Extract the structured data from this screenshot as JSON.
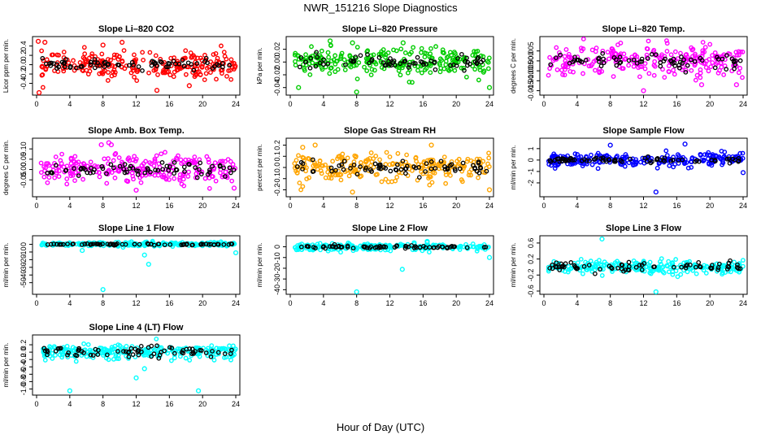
{
  "main_title": "NWR_151216  Slope Diagnostics",
  "xlabel": "Hour of Day (UTC)",
  "colors": {
    "co2": "#ff0000",
    "pressure": "#00cc00",
    "temp": "#ff00ff",
    "box_temp": "#ff00ff",
    "rh": "#ffa500",
    "sample_flow": "#0000ff",
    "line_flow": "#00ffff",
    "hourly": "#000000"
  },
  "chart_data": [
    {
      "type": "scatter",
      "title": "Slope Li–820 CO2",
      "ylabel": "Licor ppm per min.",
      "color": "#ff0000",
      "xlim": [
        0,
        24
      ],
      "ylim": [
        -0.6,
        0.55
      ],
      "xticks": [
        "0",
        "4",
        "8",
        "12",
        "16",
        "20",
        "24"
      ],
      "yticks": [
        {
          "v": -0.4,
          "label": "-0.4"
        },
        {
          "v": -0.2,
          "label": "-0.2"
        },
        {
          "v": 0,
          "label": "0.0"
        },
        {
          "v": 0.2,
          "label": "0.2"
        },
        {
          "v": 0.4,
          "label": "0.4"
        }
      ],
      "spread": 0.14,
      "hourly_spread": 0.05,
      "series": [
        {
          "x": [
            0.2,
            1.0,
            8.0,
            10.3,
            0.3,
            14.5,
            18.4
          ],
          "y": [
            0.5,
            0.48,
            0.42,
            0.48,
            -0.6,
            -0.55,
            -0.45
          ]
        }
      ]
    },
    {
      "type": "scatter",
      "title": "Slope Li–820 Pressure",
      "ylabel": "kPa per min.",
      "color": "#00cc00",
      "xlim": [
        0,
        24
      ],
      "ylim": [
        -0.048,
        0.036
      ],
      "xticks": [
        "0",
        "4",
        "8",
        "12",
        "16",
        "20",
        "24"
      ],
      "yticks": [
        {
          "v": -0.04,
          "label": "-0.04"
        },
        {
          "v": -0.02,
          "label": "-0.02"
        },
        {
          "v": 0,
          "label": "0.00"
        },
        {
          "v": 0.02,
          "label": "0.02"
        }
      ],
      "spread": 0.011,
      "hourly_spread": 0.005,
      "series": [
        {
          "x": [
            4.8,
            7.5,
            13.6,
            8.0,
            24.0,
            1.0
          ],
          "y": [
            0.033,
            0.03,
            0.03,
            -0.047,
            -0.04,
            -0.04
          ]
        }
      ]
    },
    {
      "type": "scatter",
      "title": "Slope Li–820 Temp.",
      "ylabel": "degrees C per min.",
      "color": "#ff00ff",
      "xlim": [
        0,
        24
      ],
      "ylim": [
        -0.016,
        0.011
      ],
      "xticks": [
        "0",
        "4",
        "8",
        "12",
        "16",
        "20",
        "24"
      ],
      "yticks": [
        {
          "v": -0.015,
          "label": "-0.015"
        },
        {
          "v": -0.01,
          "label": "-0.010"
        },
        {
          "v": -0.005,
          "label": "-0.005"
        },
        {
          "v": 0,
          "label": "0.000"
        },
        {
          "v": 0.005,
          "label": "0.005"
        }
      ],
      "spread": 0.004,
      "hourly_spread": 0.002,
      "series": [
        {
          "x": [
            12.0,
            19.0,
            23.2
          ],
          "y": [
            -0.015,
            -0.012,
            -0.012
          ]
        }
      ]
    },
    {
      "type": "scatter",
      "title": "Slope Amb. Box Temp.",
      "ylabel": "degrees C per min.",
      "color": "#ff00ff",
      "xlim": [
        0,
        24
      ],
      "ylim": [
        -0.12,
        0.14
      ],
      "xticks": [
        "0",
        "4",
        "8",
        "12",
        "16",
        "20",
        "24"
      ],
      "yticks": [
        {
          "v": -0.05,
          "label": "-0.05"
        },
        {
          "v": 0,
          "label": "0.00"
        },
        {
          "v": 0.05,
          "label": "0.05"
        },
        {
          "v": 0.1,
          "label": "0.10"
        }
      ],
      "spread": 0.035,
      "hourly_spread": 0.015,
      "series": [
        {
          "x": [
            7.8,
            8.7,
            9.0,
            23.8,
            12.0
          ],
          "y": [
            0.12,
            0.13,
            0.12,
            -0.09,
            -0.1
          ]
        }
      ]
    },
    {
      "type": "scatter",
      "title": "Slope Gas Stream RH",
      "ylabel": "percent per min.",
      "color": "#ffa500",
      "xlim": [
        0,
        24
      ],
      "ylim": [
        -0.24,
        0.24
      ],
      "xticks": [
        "0",
        "4",
        "8",
        "12",
        "16",
        "20",
        "24"
      ],
      "yticks": [
        {
          "v": -0.2,
          "label": "-0.2"
        },
        {
          "v": -0.1,
          "label": "-0.1"
        },
        {
          "v": 0,
          "label": "0.0"
        },
        {
          "v": 0.1,
          "label": "0.1"
        },
        {
          "v": 0.2,
          "label": "0.2"
        }
      ],
      "spread": 0.06,
      "hourly_spread": 0.03,
      "series": [
        {
          "x": [
            7.5,
            17.0,
            24.0,
            1.5,
            3.0
          ],
          "y": [
            -0.22,
            0.2,
            -0.2,
            0.18,
            0.2
          ]
        }
      ]
    },
    {
      "type": "scatter",
      "title": "Slope Sample Flow",
      "ylabel": "ml/min per min.",
      "color": "#0000ff",
      "xlim": [
        0,
        24
      ],
      "ylim": [
        -3.0,
        1.7
      ],
      "xticks": [
        "0",
        "4",
        "8",
        "12",
        "16",
        "20",
        "24"
      ],
      "yticks": [
        {
          "v": -2,
          "label": "-2"
        },
        {
          "v": -1,
          "label": "-1"
        },
        {
          "v": 0,
          "label": "0"
        },
        {
          "v": 1,
          "label": "1"
        }
      ],
      "spread": 0.3,
      "hourly_spread": 0.12,
      "series": [
        {
          "x": [
            13.5,
            8.0,
            17.0,
            24.0
          ],
          "y": [
            -2.8,
            1.3,
            1.4,
            -1.1
          ]
        }
      ]
    },
    {
      "type": "scatter",
      "title": "Slope Line 1 Flow",
      "ylabel": "ml/min per min.",
      "color": "#00ffff",
      "xlim": [
        0,
        24
      ],
      "ylim": [
        -62,
        8
      ],
      "xticks": [
        "0",
        "4",
        "8",
        "12",
        "16",
        "20",
        "24"
      ],
      "yticks": [
        {
          "v": -50,
          "label": "-50"
        },
        {
          "v": -40,
          "label": "-40"
        },
        {
          "v": -30,
          "label": "-30"
        },
        {
          "v": -20,
          "label": "-20"
        },
        {
          "v": -10,
          "label": "-10"
        },
        {
          "v": 0,
          "label": "0"
        }
      ],
      "spread": 1.3,
      "hourly_spread": 0.6,
      "series": [
        {
          "x": [
            8.0,
            13.5,
            24.0,
            5.5,
            13.0
          ],
          "y": [
            -59,
            -26,
            -11,
            -8,
            -14
          ]
        }
      ]
    },
    {
      "type": "scatter",
      "title": "Slope Line 2 Flow",
      "ylabel": "ml/min per min.",
      "color": "#00ffff",
      "xlim": [
        0,
        24
      ],
      "ylim": [
        -42,
        8
      ],
      "xticks": [
        "0",
        "4",
        "8",
        "12",
        "16",
        "20",
        "24"
      ],
      "yticks": [
        {
          "v": -40,
          "label": "-40"
        },
        {
          "v": -30,
          "label": "-30"
        },
        {
          "v": -20,
          "label": "-20"
        },
        {
          "v": -10,
          "label": "-10"
        },
        {
          "v": 0,
          "label": "0"
        }
      ],
      "spread": 1.5,
      "hourly_spread": 0.8,
      "series": [
        {
          "x": [
            8.0,
            13.5,
            24.0,
            16.5
          ],
          "y": [
            -42,
            -21,
            -10,
            5
          ]
        }
      ]
    },
    {
      "type": "scatter",
      "title": "Slope Line 3 Flow",
      "ylabel": "ml/min per min.",
      "color": "#00ffff",
      "xlim": [
        0,
        24
      ],
      "ylim": [
        -0.62,
        0.72
      ],
      "xticks": [
        "0",
        "4",
        "8",
        "12",
        "16",
        "20",
        "24"
      ],
      "yticks": [
        {
          "v": -0.6,
          "label": "-0.6"
        },
        {
          "v": -0.2,
          "label": "-0.2"
        },
        {
          "v": 0.2,
          "label": "0.2"
        },
        {
          "v": 0.6,
          "label": "0.6"
        }
      ],
      "spread": 0.08,
      "hourly_spread": 0.06,
      "series": [
        {
          "x": [
            7.0,
            13.5
          ],
          "y": [
            0.7,
            -0.62
          ]
        }
      ]
    },
    {
      "type": "scatter",
      "title": "Slope Line 4 (LT) Flow",
      "ylabel": "ml/min per min.",
      "color": "#00ffff",
      "xlim": [
        0,
        24
      ],
      "ylim": [
        -1.1,
        0.4
      ],
      "xticks": [
        "0",
        "4",
        "8",
        "12",
        "16",
        "20",
        "24"
      ],
      "yticks": [
        {
          "v": -1.0,
          "label": "-1.0"
        },
        {
          "v": -0.8,
          "label": "-0.8"
        },
        {
          "v": -0.6,
          "label": "-0.6"
        },
        {
          "v": -0.4,
          "label": "-0.4"
        },
        {
          "v": -0.2,
          "label": "-0.2"
        },
        {
          "v": 0,
          "label": "0.0"
        },
        {
          "v": 0.2,
          "label": "0.2"
        }
      ],
      "spread": 0.1,
      "hourly_spread": 0.07,
      "series": [
        {
          "x": [
            4.0,
            19.5,
            12.0,
            13.0
          ],
          "y": [
            -1.05,
            -1.05,
            -0.7,
            -0.45
          ]
        }
      ]
    }
  ]
}
